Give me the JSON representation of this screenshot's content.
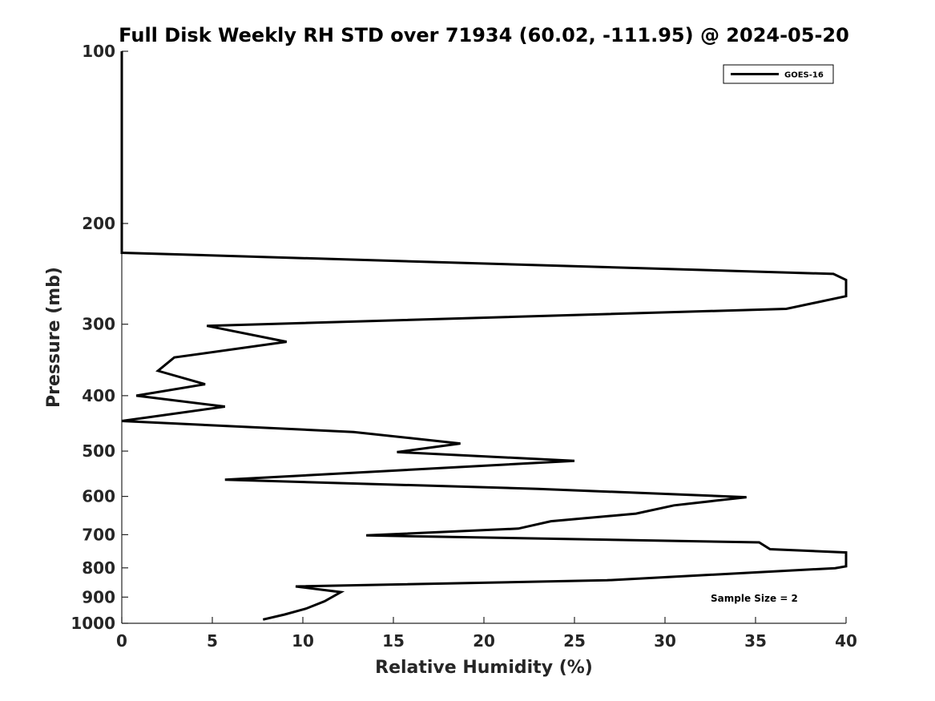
{
  "chart_data": {
    "type": "line",
    "title": "Full Disk Weekly RH STD over 71934 (60.02, -111.95) @ 2024-05-20",
    "xlabel": "Relative Humidity (%)",
    "ylabel": "Pressure (mb)",
    "xlim": [
      0,
      40
    ],
    "ylim": [
      1000,
      100
    ],
    "y_scale": "log",
    "x_ticks": [
      0,
      5,
      10,
      15,
      20,
      25,
      30,
      35,
      40
    ],
    "x_tick_labels": [
      "0",
      "5",
      "10",
      "15",
      "20",
      "25",
      "30",
      "35",
      "40"
    ],
    "y_ticks": [
      100,
      200,
      300,
      400,
      500,
      600,
      700,
      800,
      900,
      1000
    ],
    "y_tick_labels": [
      "100",
      "200",
      "300",
      "400",
      "500",
      "600",
      "700",
      "800",
      "900",
      "1000"
    ],
    "legend": {
      "placement": "top-right",
      "entries": [
        "GOES-16"
      ]
    },
    "annotation": "Sample Size = 2",
    "series": [
      {
        "name": "GOES-16",
        "color": "#000000",
        "points": [
          [
            0,
            100
          ],
          [
            0,
            150
          ],
          [
            0,
            200
          ],
          [
            0,
            225
          ],
          [
            39.3,
            245
          ],
          [
            40,
            251
          ],
          [
            40,
            268
          ],
          [
            36.7,
            282
          ],
          [
            4.7,
            302
          ],
          [
            9.1,
            322
          ],
          [
            2.9,
            343
          ],
          [
            2.0,
            362
          ],
          [
            4.6,
            382
          ],
          [
            0.8,
            400
          ],
          [
            5.7,
            418
          ],
          [
            0,
            443
          ],
          [
            12.8,
            463
          ],
          [
            18.7,
            485
          ],
          [
            15.2,
            502
          ],
          [
            25.0,
            520
          ],
          [
            5.7,
            561
          ],
          [
            23.0,
            582
          ],
          [
            34.5,
            602
          ],
          [
            30.5,
            622
          ],
          [
            28.4,
            643
          ],
          [
            23.7,
            663
          ],
          [
            21.9,
            683
          ],
          [
            13.5,
            702
          ],
          [
            35.2,
            722
          ],
          [
            35.8,
            742
          ],
          [
            40,
            752
          ],
          [
            40,
            795
          ],
          [
            39.4,
            801
          ],
          [
            26.8,
            841
          ],
          [
            9.6,
            862
          ],
          [
            12.1,
            882
          ],
          [
            11.2,
            915
          ],
          [
            10.2,
            942
          ],
          [
            9.0,
            965
          ],
          [
            7.8,
            985
          ]
        ]
      }
    ]
  }
}
